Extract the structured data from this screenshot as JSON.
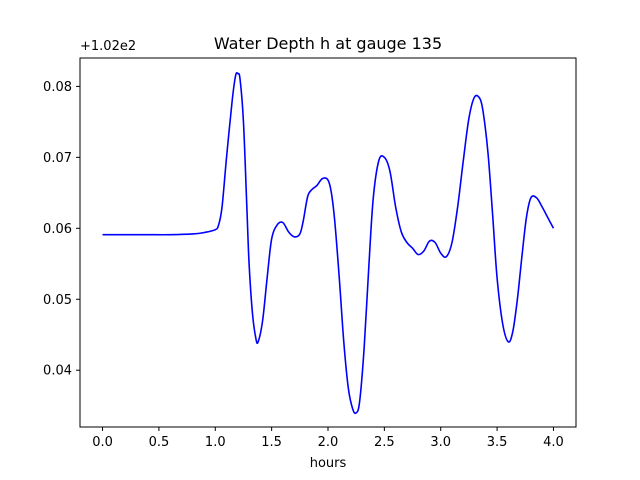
{
  "chart_data": {
    "type": "line",
    "title": "Water Depth h at gauge 135",
    "xlabel": "hours",
    "ylabel": "",
    "y_offset_label": "+1.02e2",
    "xlim": [
      -0.2,
      4.2
    ],
    "ylim": [
      0.032,
      0.084
    ],
    "x_ticks": [
      0.0,
      0.5,
      1.0,
      1.5,
      2.0,
      2.5,
      3.0,
      3.5,
      4.0
    ],
    "x_tick_labels": [
      "0.0",
      "0.5",
      "1.0",
      "1.5",
      "2.0",
      "2.5",
      "3.0",
      "3.5",
      "4.0"
    ],
    "y_ticks": [
      0.04,
      0.05,
      0.06,
      0.07,
      0.08
    ],
    "y_tick_labels": [
      "0.04",
      "0.05",
      "0.06",
      "0.07",
      "0.08"
    ],
    "grid": false,
    "colors": {
      "line": "#0000ff",
      "axes": "#000000",
      "background": "#ffffff"
    },
    "series": [
      {
        "x": [
          0.0,
          0.2,
          0.4,
          0.6,
          0.8,
          0.9,
          1.0,
          1.03,
          1.06,
          1.1,
          1.15,
          1.18,
          1.2,
          1.22,
          1.25,
          1.28,
          1.3,
          1.33,
          1.36,
          1.38,
          1.42,
          1.46,
          1.5,
          1.55,
          1.6,
          1.65,
          1.7,
          1.75,
          1.78,
          1.82,
          1.86,
          1.9,
          1.95,
          2.0,
          2.03,
          2.06,
          2.1,
          2.14,
          2.18,
          2.22,
          2.25,
          2.28,
          2.32,
          2.36,
          2.4,
          2.45,
          2.5,
          2.55,
          2.6,
          2.65,
          2.7,
          2.75,
          2.8,
          2.85,
          2.9,
          2.95,
          3.0,
          3.05,
          3.1,
          3.15,
          3.2,
          3.25,
          3.3,
          3.35,
          3.38,
          3.42,
          3.46,
          3.5,
          3.55,
          3.6,
          3.64,
          3.68,
          3.72,
          3.76,
          3.8,
          3.85,
          3.9,
          3.95,
          4.0
        ],
        "y": [
          0.0591,
          0.0591,
          0.0591,
          0.0591,
          0.0592,
          0.0594,
          0.0598,
          0.0605,
          0.063,
          0.07,
          0.078,
          0.0815,
          0.0818,
          0.081,
          0.075,
          0.063,
          0.055,
          0.048,
          0.0445,
          0.044,
          0.047,
          0.053,
          0.0585,
          0.0605,
          0.0608,
          0.0595,
          0.0588,
          0.0592,
          0.061,
          0.0645,
          0.0655,
          0.066,
          0.067,
          0.0668,
          0.065,
          0.061,
          0.053,
          0.044,
          0.0375,
          0.0345,
          0.034,
          0.0355,
          0.043,
          0.054,
          0.064,
          0.0695,
          0.07,
          0.068,
          0.063,
          0.0595,
          0.058,
          0.0572,
          0.0563,
          0.0568,
          0.0582,
          0.058,
          0.0565,
          0.056,
          0.058,
          0.063,
          0.0695,
          0.0755,
          0.0785,
          0.0782,
          0.076,
          0.0705,
          0.062,
          0.053,
          0.0465,
          0.044,
          0.0455,
          0.05,
          0.056,
          0.0615,
          0.0643,
          0.0643,
          0.063,
          0.0615,
          0.06
        ]
      }
    ]
  }
}
